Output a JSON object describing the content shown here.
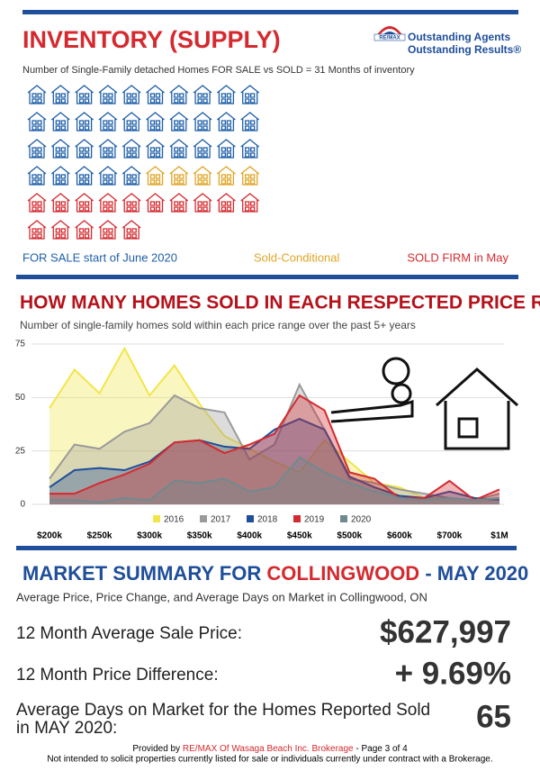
{
  "header": {
    "title": "INVENTORY (SUPPLY)",
    "logo": "RE/MAX",
    "tagline1": "Outstanding Agents",
    "tagline2": "Outstanding Results®"
  },
  "inventory": {
    "subtitle": "Number of Single-Family detached Homes FOR SALE vs SOLD = 31 Months of inventory",
    "groups": [
      {
        "label": "FOR SALE start of June 2020",
        "color": "#1f5fa8",
        "count": 35
      },
      {
        "label": "Sold-Conditional",
        "color": "#e0a526",
        "count": 5
      },
      {
        "label": "SOLD FIRM in May",
        "color": "#d42a2f",
        "count": 15
      }
    ]
  },
  "chart_data": {
    "type": "area",
    "title": "HOW MANY HOMES SOLD IN EACH RESPECTED PRICE RANGE",
    "subtitle": "Number of single-family homes sold within each price range over the past 5+ years",
    "categories": [
      "$200k",
      null,
      "$250k",
      null,
      "$300k",
      null,
      "$350k",
      null,
      "$400k",
      null,
      "$450k",
      null,
      "$500k",
      null,
      "$600k",
      null,
      "$700k",
      null,
      "$1M"
    ],
    "series": [
      {
        "name": "2016",
        "color": "#f2e54a",
        "values": [
          45,
          63,
          52,
          73,
          51,
          65,
          47,
          32,
          26,
          20,
          15,
          30,
          20,
          10,
          8,
          3,
          3,
          2,
          2
        ]
      },
      {
        "name": "2017",
        "color": "#9a9a9a",
        "values": [
          12,
          28,
          26,
          34,
          38,
          51,
          45,
          43,
          21,
          28,
          56,
          35,
          12,
          10,
          7,
          5,
          3,
          2,
          5
        ]
      },
      {
        "name": "2018",
        "color": "#1f4e9a",
        "values": [
          8,
          16,
          17,
          16,
          20,
          29,
          30,
          27,
          26,
          35,
          40,
          35,
          13,
          8,
          4,
          3,
          6,
          3,
          2
        ]
      },
      {
        "name": "2019",
        "color": "#d42a2f",
        "values": [
          5,
          5,
          10,
          14,
          19,
          29,
          30,
          24,
          28,
          33,
          51,
          44,
          15,
          12,
          3,
          3,
          11,
          2,
          7
        ]
      },
      {
        "name": "2020",
        "color": "#6f8a8f",
        "values": [
          2,
          2,
          1,
          3,
          2,
          11,
          10,
          12,
          6,
          8,
          22,
          15,
          10,
          6,
          3,
          2,
          3,
          2,
          3
        ]
      }
    ],
    "ylim": [
      0,
      75
    ],
    "yticks": [
      0,
      25,
      50,
      75
    ],
    "grid": true
  },
  "summary": {
    "title_parts": [
      "MARKET SUMMARY FOR ",
      "COLLINGWOOD",
      " - MAY 2020"
    ],
    "subtitle": "Average Price, Price Change, and Average Days on Market in Collingwood, ON",
    "rows": [
      {
        "label": "12 Month Average Sale Price:",
        "value": "$627,997"
      },
      {
        "label": "12 Month Price Difference:",
        "value": "+ 9.69%"
      },
      {
        "label": [
          "Average Days on Market for the Homes Reported Sold",
          "in MAY 2020:"
        ],
        "value": "65"
      }
    ]
  },
  "footer": {
    "line1": [
      "Provided by ",
      "RE/MAX Of Wasaga Beach Inc. Brokerage",
      " - Page 3 of 4"
    ],
    "line2": "Not intended to solicit properties currently listed for sale or individuals currently under contract with a Brokerage."
  }
}
